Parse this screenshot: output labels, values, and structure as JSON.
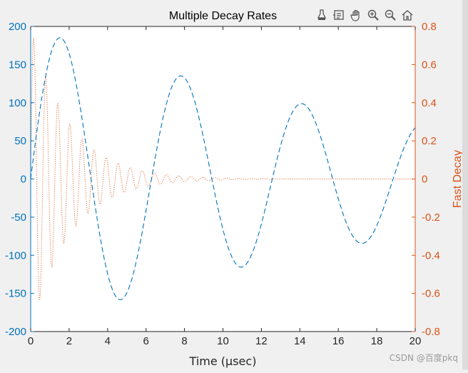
{
  "colors": {
    "left_axis": "#0072bd",
    "right_axis": "#d95319",
    "axis_black": "#262626",
    "background": "#f0f0f0",
    "plot_bg": "#ffffff"
  },
  "toolbar": {
    "icons": [
      "brush-icon",
      "data-tip-icon",
      "pan-icon",
      "zoom-in-icon",
      "zoom-out-icon",
      "home-icon"
    ]
  },
  "watermark": "CSDN @百度pkq",
  "chart_data": {
    "type": "line",
    "title": "Multiple Decay Rates",
    "xlabel": "Time (μsec)",
    "ylabel_left": "",
    "ylabel_right": "Fast Decay",
    "xlim": [
      0,
      20
    ],
    "ylim_left": [
      -200,
      200
    ],
    "ylim_right": [
      -0.8,
      0.8
    ],
    "x_ticks": [
      "0",
      "2",
      "4",
      "6",
      "8",
      "10",
      "12",
      "14",
      "16",
      "18",
      "20"
    ],
    "y_left_ticks": [
      "200",
      "150",
      "100",
      "50",
      "0",
      "-50",
      "-100",
      "-150",
      "-200"
    ],
    "y_right_ticks": [
      "0.8",
      "0.6",
      "0.4",
      "0.2",
      "0",
      "-0.2",
      "-0.4",
      "-0.6",
      "-0.8"
    ],
    "grid": false,
    "series": [
      {
        "axis": "left",
        "style": "dashed",
        "color": "#0072bd",
        "function": "200*exp(-0.05x)*sin(x)",
        "x": [
          0,
          1.5,
          4.7,
          7.8,
          11.0,
          14.1,
          17.3,
          20
        ],
        "y": [
          0,
          186,
          -159,
          135,
          -115,
          99,
          -84,
          67
        ]
      },
      {
        "axis": "right",
        "style": "dotted",
        "color": "#d95319",
        "function": "0.8*exp(-0.5x)*sin(10x)",
        "x": [
          0,
          0.16,
          0.47,
          0.79,
          1.1,
          1.41,
          1.73,
          2.04,
          2.36,
          20
        ],
        "y": [
          0,
          0.74,
          -0.63,
          0.53,
          -0.46,
          0.39,
          -0.33,
          0.29,
          -0.24,
          0
        ]
      }
    ]
  }
}
